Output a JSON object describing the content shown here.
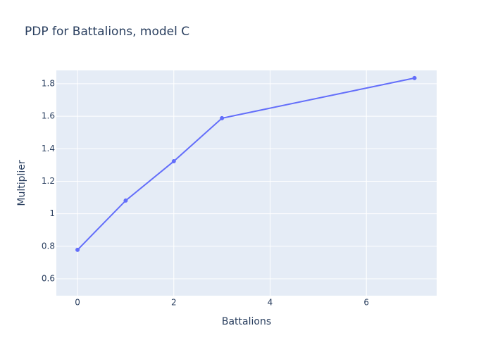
{
  "chart_data": {
    "type": "line",
    "title": "PDP for Battalions, model C",
    "x_label": "Battalions",
    "y_label": "Multiplier",
    "series": [
      {
        "color": "#636efa",
        "x": [
          0,
          1,
          2,
          3,
          7
        ],
        "values": [
          0.778,
          1.081,
          1.323,
          1.588,
          1.835
        ]
      }
    ],
    "xlim": [
      -0.44,
      7.46
    ],
    "xticks": [
      0,
      2,
      4,
      6
    ],
    "ylim": [
      0.496,
      1.882
    ],
    "yticks": [
      0.6,
      0.8,
      1,
      1.2,
      1.4,
      1.6,
      1.8
    ],
    "grid": true
  }
}
